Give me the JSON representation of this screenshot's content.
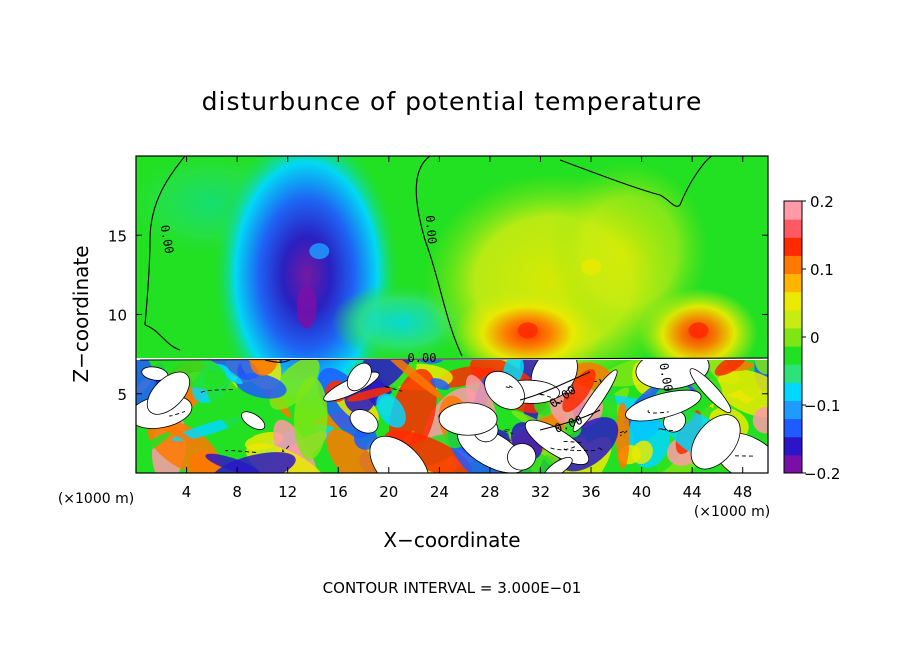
{
  "chart_data": {
    "type": "heatmap",
    "title": "disturbunce of potential temperature",
    "xlabel": "X−coordinate",
    "ylabel": "Z−coordinate",
    "x_unit": "(×1000 m)",
    "y_unit": "(×1000 m)",
    "footnote": "CONTOUR INTERVAL = 3.000E−01",
    "xlim": [
      0,
      50
    ],
    "ylim": [
      0,
      20
    ],
    "x_ticks": [
      4,
      8,
      12,
      16,
      20,
      24,
      28,
      32,
      36,
      40,
      44,
      48
    ],
    "x_tick_labels": [
      "4",
      "8",
      "12",
      "16",
      "20",
      "24",
      "28",
      "32",
      "36",
      "40",
      "44",
      "48"
    ],
    "y_ticks": [
      5,
      10,
      15
    ],
    "y_tick_labels": [
      "5",
      "10",
      "15"
    ],
    "colorbar": {
      "min": -0.2,
      "max": 0.2,
      "ticks": [
        0.2,
        0.1,
        0,
        -0.1,
        -0.2
      ],
      "tick_labels": [
        "0.2",
        "0.1",
        "0",
        "−0.1",
        "−0.2"
      ],
      "colors": [
        "#7a0fa8",
        "#2a16c8",
        "#1e5cff",
        "#1e9bff",
        "#00d8ff",
        "#2ee27a",
        "#22e022",
        "#7ee614",
        "#c8ec12",
        "#eaea00",
        "#ffb400",
        "#ff7800",
        "#ff2a00",
        "#ff5a64",
        "#ff9aa8"
      ]
    },
    "contour_labels": [
      "0.00",
      "0.00",
      "0.00",
      "0.00",
      "0.00",
      "0.00"
    ],
    "upper_anomalies": [
      {
        "x": 13.5,
        "z": 10.5,
        "value": -0.2
      },
      {
        "x": 14.5,
        "z": 14.0,
        "value": -0.12
      },
      {
        "x": 31,
        "z": 9,
        "value": 0.13
      },
      {
        "x": 44.5,
        "z": 9,
        "value": 0.15
      },
      {
        "x": 36,
        "z": 13,
        "value": 0.07
      }
    ]
  }
}
